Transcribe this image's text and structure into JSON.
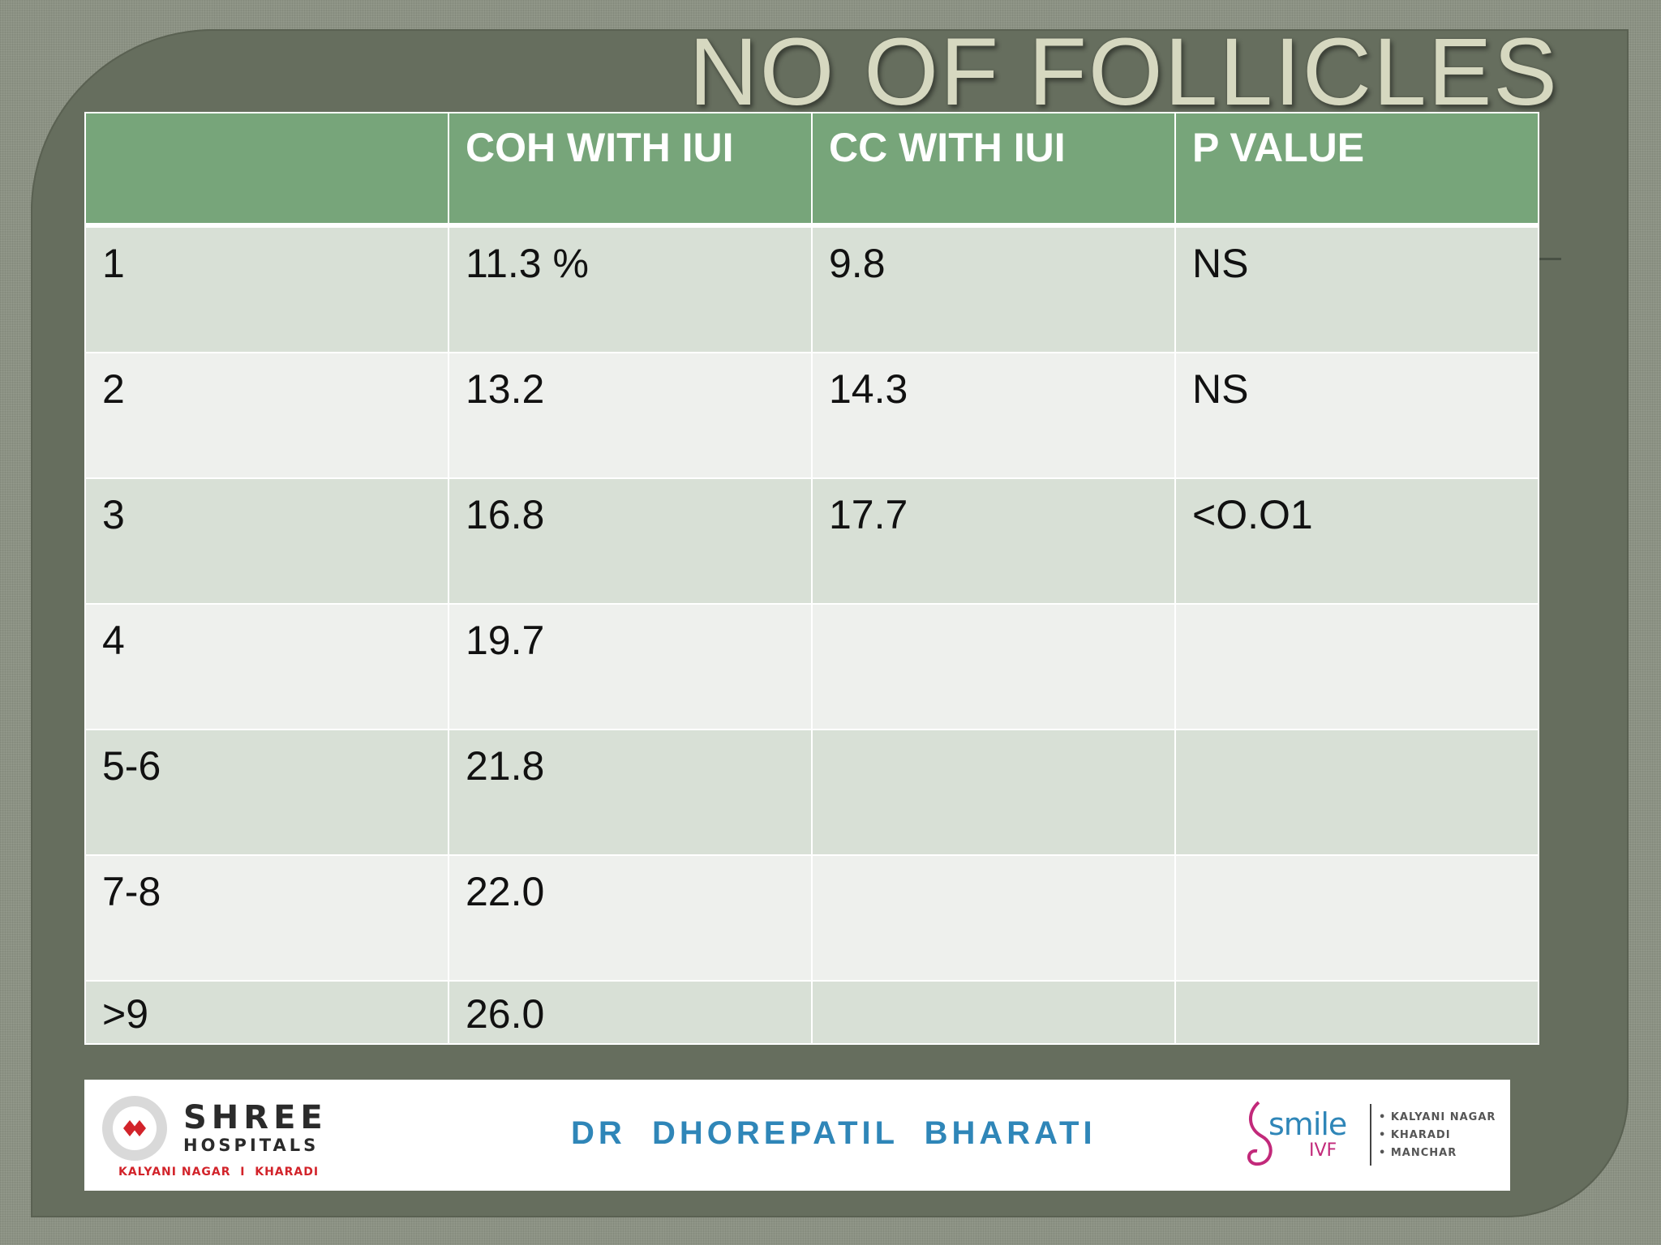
{
  "title": "NO OF FOLLICLES",
  "table": {
    "headers": [
      "",
      "COH WITH IUI",
      "CC WITH IUI",
      "P VALUE"
    ],
    "rows": [
      [
        "1",
        "11.3 %",
        "9.8",
        "NS"
      ],
      [
        "2",
        "13.2",
        "14.3",
        "NS"
      ],
      [
        "3",
        "16.8",
        "17.7",
        "<O.O1"
      ],
      [
        "4",
        "19.7",
        "",
        ""
      ],
      [
        "5-6",
        "21.8",
        "",
        ""
      ],
      [
        "7-8",
        "22.0",
        "",
        ""
      ],
      [
        ">9",
        "26.0",
        "",
        ""
      ]
    ]
  },
  "footer": {
    "left_logo": {
      "name": "SHREE",
      "subtitle": "HOSPITALS",
      "locations": "KALYANI NAGAR  I  KHARADI"
    },
    "doctor": "DR  DHOREPATIL  BHARATI",
    "right_logo": {
      "brand": "smile",
      "sub": "IVF",
      "locations": [
        "• KALYANI NAGAR",
        "• KHARADI",
        "• MANCHAR"
      ]
    }
  },
  "colors": {
    "header_green": "#77a57a",
    "row_odd": "#d8e0d6",
    "row_even": "#eef0ed",
    "panel": "#666e5e",
    "title": "#d6d8c0",
    "doctor_blue": "#2f86b8",
    "shree_red": "#d2232a",
    "smile_pink": "#c2297a"
  }
}
